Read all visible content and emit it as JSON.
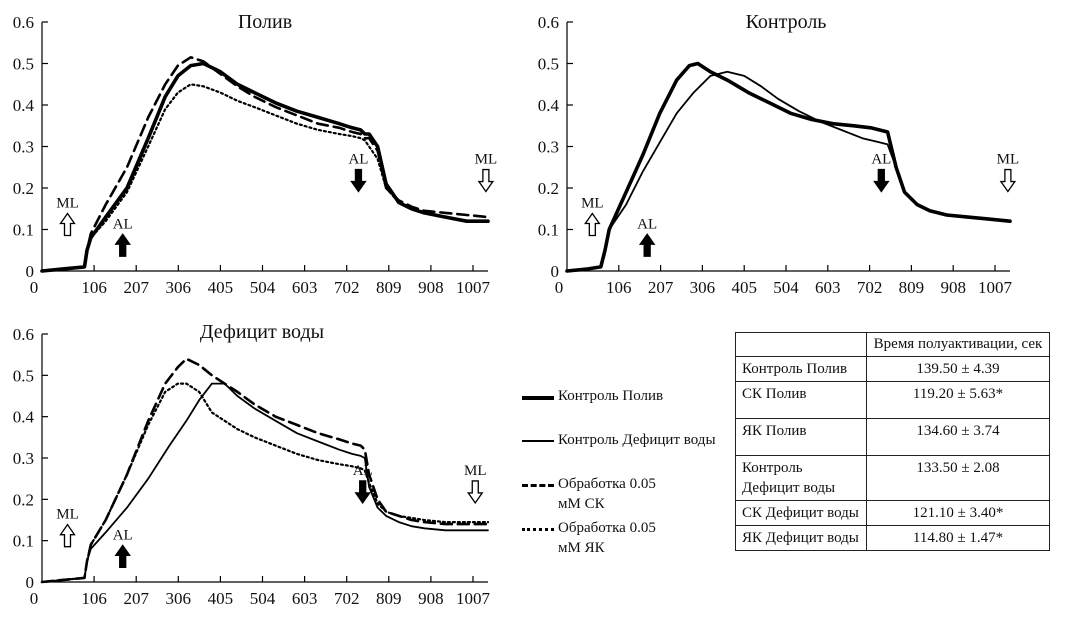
{
  "chart_data": [
    {
      "type": "line",
      "title": "Полив",
      "xticks": [
        "0",
        "106",
        "207",
        "306",
        "405",
        "504",
        "603",
        "702",
        "809",
        "908",
        "1007"
      ],
      "xlim": [
        0,
        1050
      ],
      "yticks": [
        "0",
        "0.1",
        "0.2",
        "0.3",
        "0.4",
        "0.5",
        "0.6"
      ],
      "ylim": [
        0,
        0.6
      ],
      "annotations": [
        {
          "text": "ML",
          "kind": "open-arrow-up",
          "x": 60,
          "y": 0.1
        },
        {
          "text": "AL",
          "kind": "filled-arrow-up",
          "x": 190,
          "y": 0.05
        },
        {
          "text": "AL",
          "kind": "filled-arrow-down",
          "x": 745,
          "y": 0.23
        },
        {
          "text": "ML",
          "kind": "open-arrow-down",
          "x": 1045,
          "y": 0.23
        }
      ],
      "series": [
        {
          "style": "thick",
          "x": [
            0,
            50,
            100,
            106,
            115,
            150,
            200,
            250,
            290,
            320,
            350,
            380,
            420,
            460,
            500,
            550,
            600,
            650,
            700,
            730,
            750,
            760,
            770,
            790,
            810,
            840,
            870,
            900,
            950,
            1000,
            1050
          ],
          "y": [
            0,
            0.005,
            0.01,
            0.05,
            0.08,
            0.13,
            0.2,
            0.32,
            0.42,
            0.47,
            0.495,
            0.5,
            0.48,
            0.45,
            0.43,
            0.405,
            0.385,
            0.37,
            0.355,
            0.345,
            0.34,
            0.33,
            0.33,
            0.3,
            0.21,
            0.165,
            0.15,
            0.14,
            0.13,
            0.12,
            0.12
          ]
        },
        {
          "style": "dashed",
          "x": [
            0,
            50,
            100,
            106,
            115,
            150,
            200,
            250,
            290,
            320,
            350,
            380,
            420,
            460,
            500,
            550,
            600,
            650,
            700,
            730,
            750,
            760,
            770,
            790,
            810,
            840,
            870,
            900,
            950,
            1000,
            1050
          ],
          "y": [
            0,
            0.005,
            0.01,
            0.05,
            0.09,
            0.16,
            0.25,
            0.37,
            0.45,
            0.495,
            0.515,
            0.505,
            0.475,
            0.445,
            0.42,
            0.395,
            0.375,
            0.355,
            0.345,
            0.335,
            0.33,
            0.32,
            0.32,
            0.29,
            0.2,
            0.17,
            0.155,
            0.145,
            0.14,
            0.135,
            0.13
          ]
        },
        {
          "style": "dotted",
          "x": [
            0,
            50,
            100,
            106,
            115,
            150,
            200,
            250,
            290,
            320,
            350,
            380,
            420,
            460,
            500,
            550,
            600,
            650,
            700,
            730,
            750,
            760,
            770,
            790,
            810,
            840,
            870,
            900,
            950,
            1000,
            1050
          ],
          "y": [
            0,
            0.005,
            0.01,
            0.05,
            0.08,
            0.12,
            0.19,
            0.3,
            0.39,
            0.43,
            0.45,
            0.445,
            0.43,
            0.41,
            0.395,
            0.375,
            0.355,
            0.34,
            0.33,
            0.325,
            0.32,
            0.315,
            0.3,
            0.27,
            0.2,
            0.165,
            0.15,
            0.14,
            0.13,
            0.12,
            0.12
          ]
        }
      ]
    },
    {
      "type": "line",
      "title": "Контроль",
      "xticks": [
        "0",
        "106",
        "207",
        "306",
        "405",
        "504",
        "603",
        "702",
        "809",
        "908",
        "1007"
      ],
      "xlim": [
        0,
        1050
      ],
      "yticks": [
        "0",
        "0.1",
        "0.2",
        "0.3",
        "0.4",
        "0.5",
        "0.6"
      ],
      "ylim": [
        0,
        0.6
      ],
      "annotations": [
        {
          "text": "ML",
          "kind": "open-arrow-up",
          "x": 60,
          "y": 0.1
        },
        {
          "text": "AL",
          "kind": "filled-arrow-up",
          "x": 190,
          "y": 0.05
        },
        {
          "text": "AL",
          "kind": "filled-arrow-down",
          "x": 745,
          "y": 0.23
        },
        {
          "text": "ML",
          "kind": "open-arrow-down",
          "x": 1045,
          "y": 0.23
        }
      ],
      "series": [
        {
          "style": "thick",
          "x": [
            0,
            50,
            80,
            90,
            100,
            140,
            180,
            220,
            260,
            290,
            310,
            340,
            380,
            430,
            480,
            530,
            580,
            630,
            680,
            720,
            740,
            760,
            780,
            800,
            830,
            860,
            900,
            950,
            1000,
            1050
          ],
          "y": [
            0,
            0.005,
            0.01,
            0.05,
            0.1,
            0.19,
            0.28,
            0.38,
            0.46,
            0.495,
            0.5,
            0.48,
            0.46,
            0.43,
            0.405,
            0.38,
            0.365,
            0.355,
            0.35,
            0.345,
            0.34,
            0.335,
            0.25,
            0.19,
            0.16,
            0.145,
            0.135,
            0.13,
            0.125,
            0.12
          ]
        },
        {
          "style": "thin",
          "x": [
            0,
            50,
            80,
            90,
            100,
            140,
            180,
            220,
            260,
            300,
            340,
            380,
            420,
            460,
            500,
            550,
            600,
            650,
            700,
            740,
            760,
            780,
            800,
            830,
            860,
            900,
            950,
            1000,
            1050
          ],
          "y": [
            0,
            0.005,
            0.01,
            0.05,
            0.1,
            0.16,
            0.24,
            0.31,
            0.38,
            0.43,
            0.47,
            0.48,
            0.47,
            0.445,
            0.415,
            0.385,
            0.36,
            0.34,
            0.32,
            0.31,
            0.305,
            0.25,
            0.19,
            0.16,
            0.145,
            0.135,
            0.13,
            0.125,
            0.12
          ]
        }
      ]
    },
    {
      "type": "line",
      "title": "Дефицит воды",
      "xticks": [
        "0",
        "106",
        "207",
        "306",
        "405",
        "504",
        "603",
        "702",
        "809",
        "908",
        "1007"
      ],
      "xlim": [
        0,
        1050
      ],
      "yticks": [
        "0",
        "0.1",
        "0.2",
        "0.3",
        "0.4",
        "0.5",
        "0.6"
      ],
      "ylim": [
        0,
        0.6
      ],
      "annotations": [
        {
          "text": "ML",
          "kind": "open-arrow-up",
          "x": 60,
          "y": 0.1
        },
        {
          "text": "AL",
          "kind": "filled-arrow-up",
          "x": 190,
          "y": 0.05
        },
        {
          "text": "AL",
          "kind": "filled-arrow-down",
          "x": 755,
          "y": 0.23
        },
        {
          "text": "ML",
          "kind": "open-arrow-down",
          "x": 1020,
          "y": 0.23
        }
      ],
      "series": [
        {
          "style": "thin",
          "x": [
            0,
            50,
            100,
            106,
            115,
            150,
            200,
            250,
            300,
            340,
            370,
            400,
            430,
            460,
            500,
            550,
            600,
            650,
            700,
            730,
            750,
            760,
            770,
            790,
            810,
            840,
            870,
            900,
            950,
            1000,
            1050
          ],
          "y": [
            0,
            0.005,
            0.01,
            0.05,
            0.08,
            0.12,
            0.18,
            0.25,
            0.33,
            0.39,
            0.44,
            0.48,
            0.48,
            0.45,
            0.42,
            0.39,
            0.36,
            0.34,
            0.32,
            0.31,
            0.305,
            0.3,
            0.23,
            0.18,
            0.16,
            0.145,
            0.135,
            0.13,
            0.125,
            0.125,
            0.125
          ]
        },
        {
          "style": "dashed",
          "x": [
            0,
            50,
            100,
            106,
            115,
            150,
            200,
            250,
            290,
            320,
            340,
            370,
            400,
            430,
            460,
            500,
            550,
            600,
            650,
            700,
            730,
            750,
            760,
            770,
            790,
            810,
            840,
            870,
            900,
            950,
            1000,
            1050
          ],
          "y": [
            0,
            0.005,
            0.01,
            0.05,
            0.09,
            0.15,
            0.26,
            0.39,
            0.48,
            0.52,
            0.54,
            0.525,
            0.5,
            0.48,
            0.46,
            0.43,
            0.4,
            0.38,
            0.36,
            0.345,
            0.335,
            0.33,
            0.32,
            0.26,
            0.2,
            0.17,
            0.16,
            0.15,
            0.145,
            0.14,
            0.14,
            0.14
          ]
        },
        {
          "style": "dotted",
          "x": [
            0,
            50,
            100,
            106,
            115,
            150,
            200,
            250,
            290,
            320,
            340,
            370,
            400,
            430,
            460,
            500,
            550,
            600,
            650,
            700,
            730,
            750,
            760,
            770,
            790,
            810,
            840,
            870,
            900,
            950,
            1000,
            1050
          ],
          "y": [
            0,
            0.005,
            0.01,
            0.05,
            0.09,
            0.15,
            0.26,
            0.38,
            0.46,
            0.48,
            0.48,
            0.46,
            0.41,
            0.39,
            0.37,
            0.35,
            0.33,
            0.31,
            0.295,
            0.285,
            0.28,
            0.275,
            0.27,
            0.24,
            0.19,
            0.17,
            0.16,
            0.155,
            0.15,
            0.145,
            0.145,
            0.145
          ]
        }
      ]
    }
  ],
  "legend": [
    {
      "style": "thick",
      "label": "Контроль Полив"
    },
    {
      "style": "thin",
      "label": "Контроль Дефицит воды"
    },
    {
      "style": "dashed",
      "label": "Обработка 0.05 мМ СК"
    },
    {
      "style": "dotted",
      "label": "Обработка 0.05 мМ ЯК"
    }
  ],
  "table": {
    "header": "Время полуактивации, сек",
    "rows": [
      {
        "name": "Контроль Полив",
        "value": "139.50 ± 4.39"
      },
      {
        "name": "СК Полив",
        "value": "119.20 ± 5.63*"
      },
      {
        "name": "ЯК Полив",
        "value": "134.60 ± 3.74"
      },
      {
        "name": "Контроль Дефицит воды",
        "value": "133.50 ± 2.08"
      },
      {
        "name": "СК Дефицит воды",
        "value": "121.10 ± 3.40*"
      },
      {
        "name": "ЯК Дефицит воды",
        "value": "114.80 ± 1.47*"
      }
    ]
  }
}
